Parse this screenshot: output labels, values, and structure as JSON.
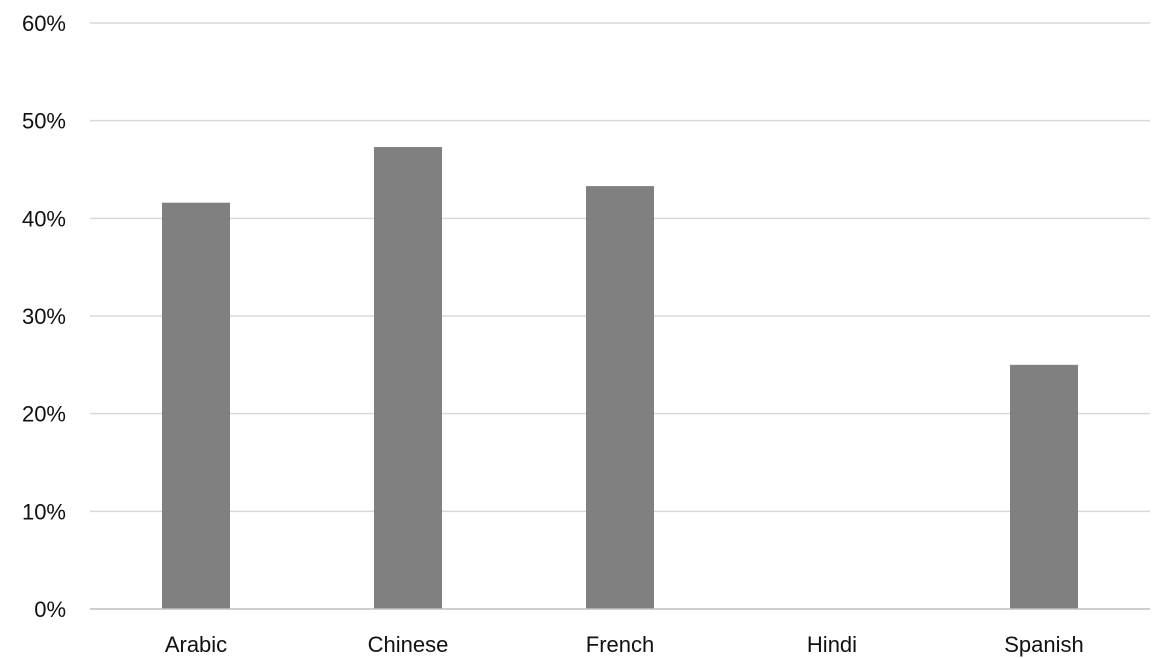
{
  "chart_data": {
    "type": "bar",
    "categories": [
      "Arabic",
      "Chinese",
      "French",
      "Hindi",
      "Spanish"
    ],
    "values": [
      0.416,
      0.473,
      0.433,
      0.0,
      0.25
    ],
    "ylim": [
      0,
      0.6
    ],
    "yticks": [
      0,
      0.1,
      0.2,
      0.3,
      0.4,
      0.5,
      0.6
    ],
    "ytick_labels": [
      "0%",
      "10%",
      "20%",
      "30%",
      "40%",
      "50%",
      "60%"
    ],
    "title": "",
    "xlabel": "",
    "ylabel": "",
    "grid": true,
    "bar_color": "#808080",
    "grid_color": "#d9d9d9"
  }
}
